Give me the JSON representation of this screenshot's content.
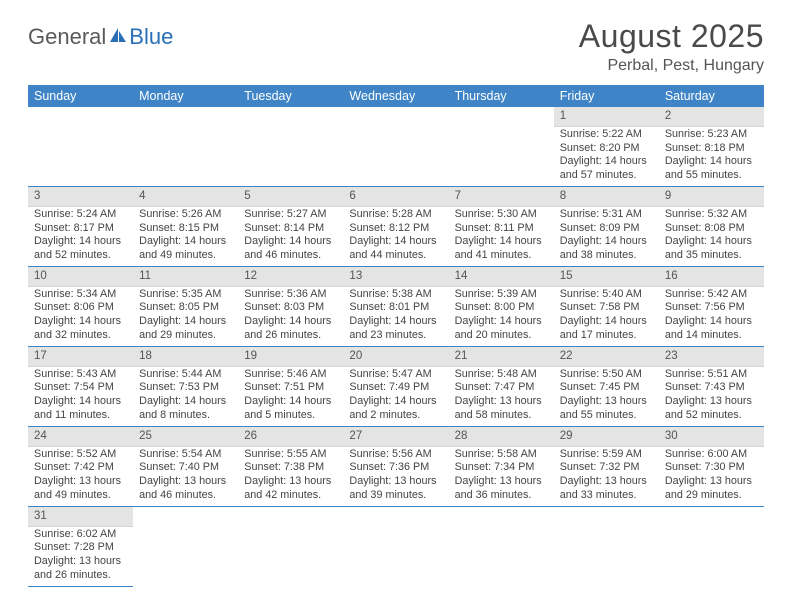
{
  "logo": {
    "text1": "General",
    "text2": "Blue",
    "color1": "#5a5a5a",
    "color2": "#2a6fb5"
  },
  "title": "August 2025",
  "location": "Perbal, Pest, Hungary",
  "header_bg": "#3e84c6",
  "daynum_bg": "#e4e4e4",
  "row_border": "#3e84c6",
  "dayHeaders": [
    "Sunday",
    "Monday",
    "Tuesday",
    "Wednesday",
    "Thursday",
    "Friday",
    "Saturday"
  ],
  "weeks": [
    [
      null,
      null,
      null,
      null,
      null,
      {
        "n": "1",
        "sr": "5:22 AM",
        "ss": "8:20 PM",
        "dl": "14 hours and 57 minutes."
      },
      {
        "n": "2",
        "sr": "5:23 AM",
        "ss": "8:18 PM",
        "dl": "14 hours and 55 minutes."
      }
    ],
    [
      {
        "n": "3",
        "sr": "5:24 AM",
        "ss": "8:17 PM",
        "dl": "14 hours and 52 minutes."
      },
      {
        "n": "4",
        "sr": "5:26 AM",
        "ss": "8:15 PM",
        "dl": "14 hours and 49 minutes."
      },
      {
        "n": "5",
        "sr": "5:27 AM",
        "ss": "8:14 PM",
        "dl": "14 hours and 46 minutes."
      },
      {
        "n": "6",
        "sr": "5:28 AM",
        "ss": "8:12 PM",
        "dl": "14 hours and 44 minutes."
      },
      {
        "n": "7",
        "sr": "5:30 AM",
        "ss": "8:11 PM",
        "dl": "14 hours and 41 minutes."
      },
      {
        "n": "8",
        "sr": "5:31 AM",
        "ss": "8:09 PM",
        "dl": "14 hours and 38 minutes."
      },
      {
        "n": "9",
        "sr": "5:32 AM",
        "ss": "8:08 PM",
        "dl": "14 hours and 35 minutes."
      }
    ],
    [
      {
        "n": "10",
        "sr": "5:34 AM",
        "ss": "8:06 PM",
        "dl": "14 hours and 32 minutes."
      },
      {
        "n": "11",
        "sr": "5:35 AM",
        "ss": "8:05 PM",
        "dl": "14 hours and 29 minutes."
      },
      {
        "n": "12",
        "sr": "5:36 AM",
        "ss": "8:03 PM",
        "dl": "14 hours and 26 minutes."
      },
      {
        "n": "13",
        "sr": "5:38 AM",
        "ss": "8:01 PM",
        "dl": "14 hours and 23 minutes."
      },
      {
        "n": "14",
        "sr": "5:39 AM",
        "ss": "8:00 PM",
        "dl": "14 hours and 20 minutes."
      },
      {
        "n": "15",
        "sr": "5:40 AM",
        "ss": "7:58 PM",
        "dl": "14 hours and 17 minutes."
      },
      {
        "n": "16",
        "sr": "5:42 AM",
        "ss": "7:56 PM",
        "dl": "14 hours and 14 minutes."
      }
    ],
    [
      {
        "n": "17",
        "sr": "5:43 AM",
        "ss": "7:54 PM",
        "dl": "14 hours and 11 minutes."
      },
      {
        "n": "18",
        "sr": "5:44 AM",
        "ss": "7:53 PM",
        "dl": "14 hours and 8 minutes."
      },
      {
        "n": "19",
        "sr": "5:46 AM",
        "ss": "7:51 PM",
        "dl": "14 hours and 5 minutes."
      },
      {
        "n": "20",
        "sr": "5:47 AM",
        "ss": "7:49 PM",
        "dl": "14 hours and 2 minutes."
      },
      {
        "n": "21",
        "sr": "5:48 AM",
        "ss": "7:47 PM",
        "dl": "13 hours and 58 minutes."
      },
      {
        "n": "22",
        "sr": "5:50 AM",
        "ss": "7:45 PM",
        "dl": "13 hours and 55 minutes."
      },
      {
        "n": "23",
        "sr": "5:51 AM",
        "ss": "7:43 PM",
        "dl": "13 hours and 52 minutes."
      }
    ],
    [
      {
        "n": "24",
        "sr": "5:52 AM",
        "ss": "7:42 PM",
        "dl": "13 hours and 49 minutes."
      },
      {
        "n": "25",
        "sr": "5:54 AM",
        "ss": "7:40 PM",
        "dl": "13 hours and 46 minutes."
      },
      {
        "n": "26",
        "sr": "5:55 AM",
        "ss": "7:38 PM",
        "dl": "13 hours and 42 minutes."
      },
      {
        "n": "27",
        "sr": "5:56 AM",
        "ss": "7:36 PM",
        "dl": "13 hours and 39 minutes."
      },
      {
        "n": "28",
        "sr": "5:58 AM",
        "ss": "7:34 PM",
        "dl": "13 hours and 36 minutes."
      },
      {
        "n": "29",
        "sr": "5:59 AM",
        "ss": "7:32 PM",
        "dl": "13 hours and 33 minutes."
      },
      {
        "n": "30",
        "sr": "6:00 AM",
        "ss": "7:30 PM",
        "dl": "13 hours and 29 minutes."
      }
    ],
    [
      {
        "n": "31",
        "sr": "6:02 AM",
        "ss": "7:28 PM",
        "dl": "13 hours and 26 minutes."
      },
      null,
      null,
      null,
      null,
      null,
      null
    ]
  ],
  "labels": {
    "sunrise": "Sunrise:",
    "sunset": "Sunset:",
    "daylight": "Daylight:"
  }
}
